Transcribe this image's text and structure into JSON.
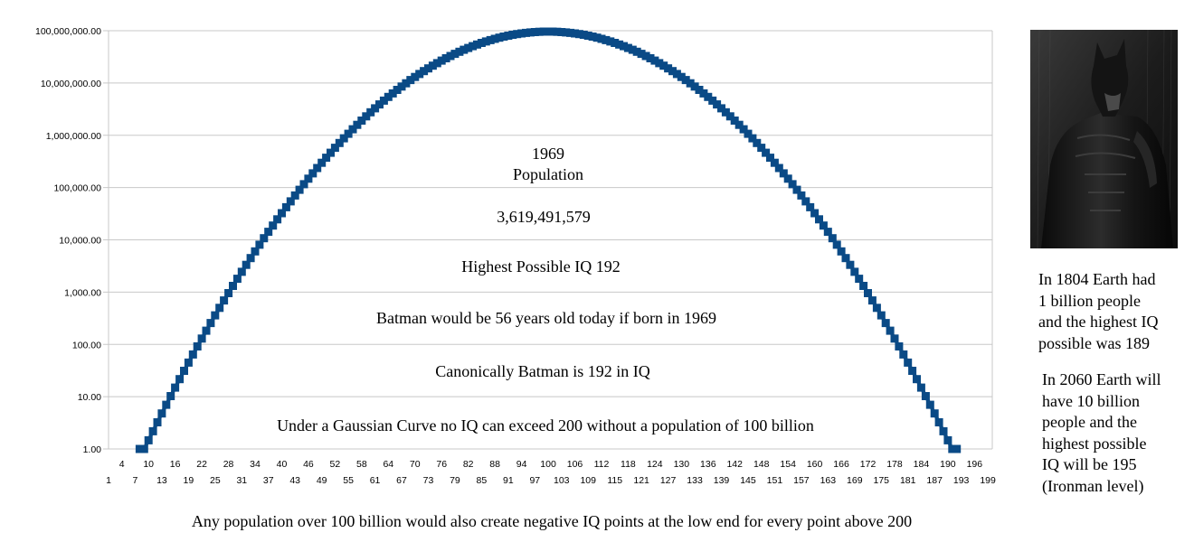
{
  "chart_data": {
    "type": "line",
    "scale": "log",
    "grid": true,
    "legend": "none",
    "series_color": "#0a4a86",
    "grid_color": "#c8c8c8",
    "x": [
      1,
      200
    ],
    "x_tick_labels_top": [
      4,
      10,
      16,
      22,
      28,
      34,
      40,
      46,
      52,
      58,
      64,
      70,
      76,
      82,
      88,
      94,
      100,
      106,
      112,
      118,
      124,
      130,
      136,
      142,
      148,
      154,
      160,
      166,
      172,
      178,
      184,
      190,
      196
    ],
    "x_tick_labels_bottom": [
      1,
      7,
      13,
      19,
      25,
      31,
      37,
      43,
      49,
      55,
      61,
      67,
      73,
      79,
      85,
      91,
      97,
      103,
      109,
      115,
      121,
      127,
      133,
      139,
      145,
      151,
      157,
      163,
      169,
      175,
      181,
      187,
      193,
      199
    ],
    "y_tick_labels": [
      "100,000,000.00",
      "10,000,000.00",
      "1,000,000.00",
      "100,000.00",
      "10,000.00",
      "1,000.00",
      "100.00",
      "10.00",
      "1.00"
    ],
    "ylim": [
      1,
      100000000
    ],
    "series": [
      {
        "mean": 100,
        "sd": 15,
        "population": 3619491579,
        "x_min": 8,
        "x_max": 192,
        "floor": 1
      }
    ],
    "annotations": [
      "1969",
      "Population",
      "3,619,491,579",
      "Highest Possible IQ 192",
      "Batman would be 56 years old today if born in 1969",
      "Canonically Batman is 192 in IQ",
      "Under a Gaussian Curve  no IQ can exceed 200 without a population of 100 billion"
    ]
  },
  "side_notes": {
    "note_1804": "In 1804 Earth had\n1 billion people\nand the highest IQ\npossible was 189",
    "note_2060": "In 2060 Earth will\nhave 10 billion\npeople and the\nhighest possible\nIQ will be 195\n(Ironman level)"
  },
  "footnote": "Any population over 100 billion would also create negative IQ points at the low end for every point above 200"
}
